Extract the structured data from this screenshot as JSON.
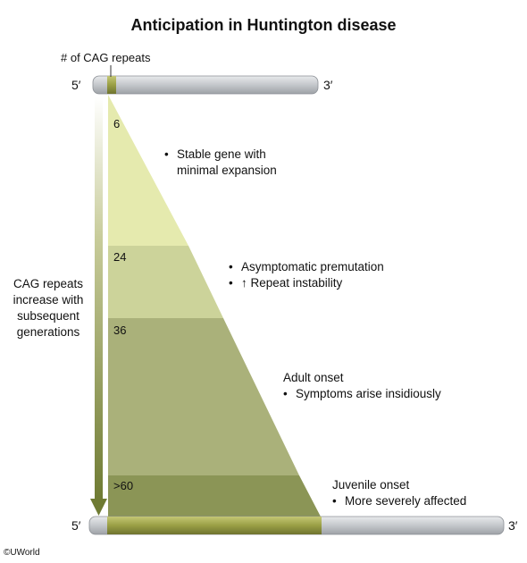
{
  "title": "Anticipation in Huntington disease",
  "cag_repeats_label": "# of CAG repeats",
  "strand": {
    "five_prime": "5′",
    "three_prime": "3′"
  },
  "side_label": [
    "CAG repeats",
    "increase with",
    "subsequent",
    "generations"
  ],
  "tiers": [
    {
      "repeats": "6",
      "lines": [
        "Stable gene with",
        "minimal expansion"
      ],
      "bullets": [
        0
      ],
      "color": "#e5eaae"
    },
    {
      "repeats": "24",
      "lines": [
        "Asymptomatic premutation",
        "↑ Repeat instability"
      ],
      "bullets": [
        0,
        1
      ],
      "color": "#ccd39a"
    },
    {
      "repeats": "36",
      "lines": [
        "Adult onset",
        "Symptoms arise insidiously"
      ],
      "bullets": [
        1
      ],
      "color": "#aab17a"
    },
    {
      "repeats": ">60",
      "lines": [
        "Juvenile onset",
        "More severely affected"
      ],
      "bullets": [
        1
      ],
      "color": "#8b9556"
    }
  ],
  "colors": {
    "strand": "#c9ccd0",
    "repeat_segment": "#9ea24a",
    "arrow": "#7e8a43"
  },
  "copyright": "©UWorld"
}
